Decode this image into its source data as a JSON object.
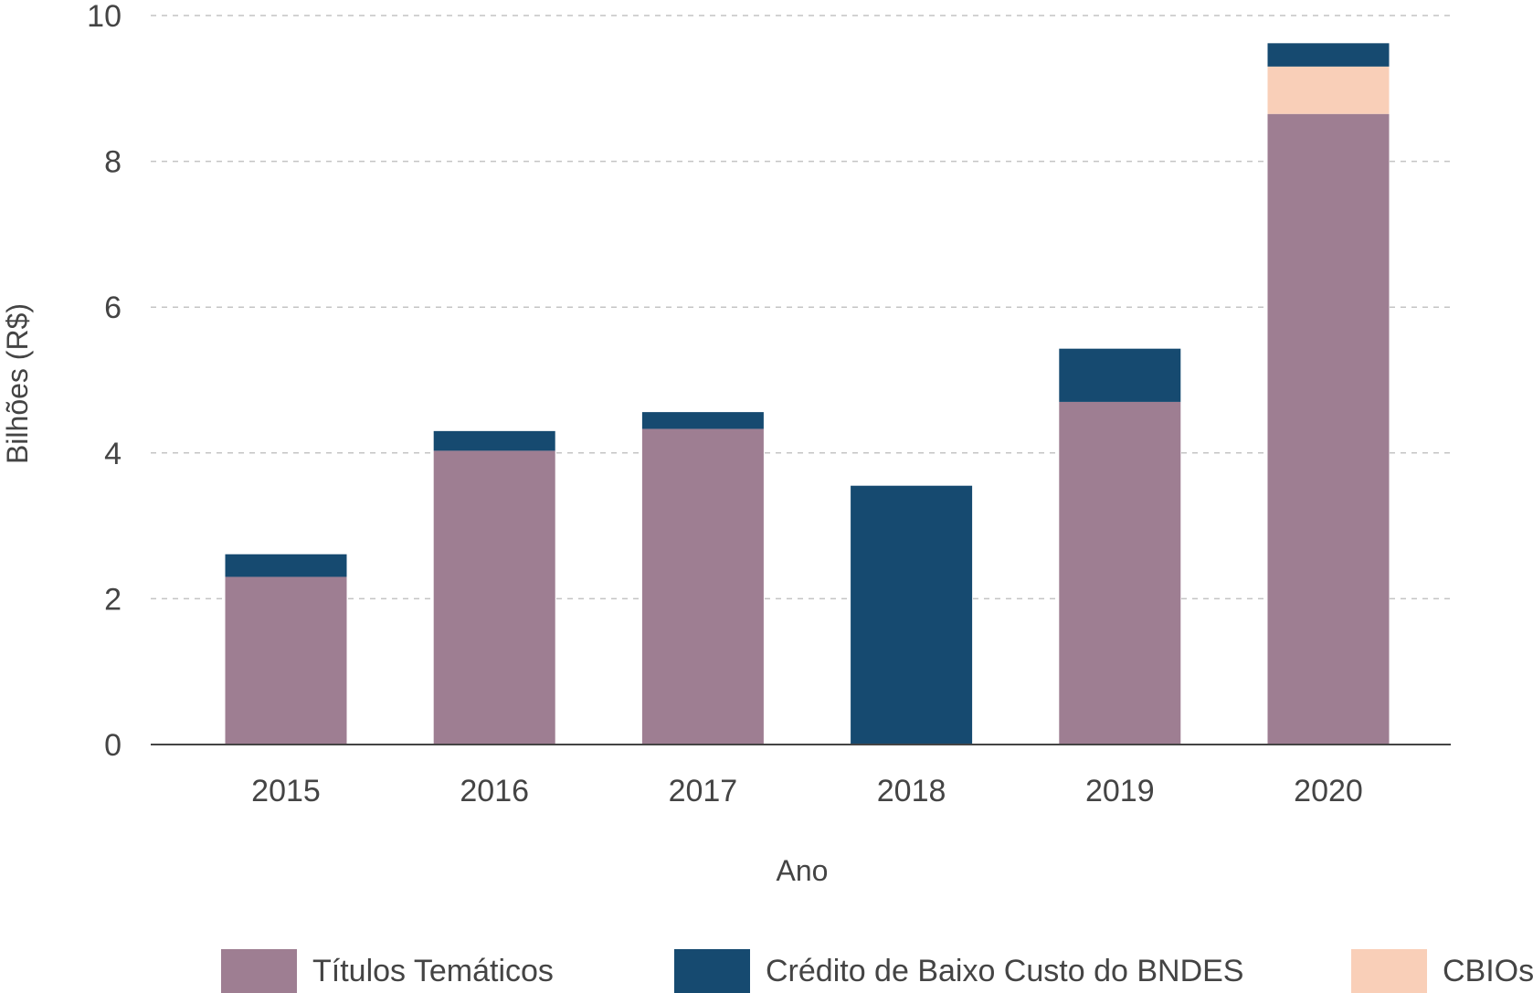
{
  "chart_data": {
    "type": "bar",
    "stacked": true,
    "title": "",
    "xlabel": "Ano",
    "ylabel": "Bilhões (R$)",
    "ylim": [
      0,
      10
    ],
    "yticks": [
      0,
      2,
      4,
      6,
      8,
      10
    ],
    "grid": "horizontal dashed",
    "legend_position": "bottom",
    "categories": [
      "2015",
      "2016",
      "2017",
      "2018",
      "2019",
      "2020"
    ],
    "series": [
      {
        "name": "Títulos Temáticos",
        "color": "#9e7e92",
        "values": [
          2.3,
          4.03,
          4.33,
          0,
          4.7,
          8.65
        ]
      },
      {
        "name": "CBIOs",
        "color": "#f9cfb8",
        "values": [
          0,
          0,
          0,
          0,
          0,
          0.65
        ]
      },
      {
        "name": "Crédito de Baixo Custo do BNDES",
        "color": "#164a70",
        "values": [
          0.31,
          0.27,
          0.23,
          3.55,
          0.73,
          0.32
        ]
      }
    ],
    "legend_order": [
      "Títulos Temáticos",
      "Crédito de Baixo Custo do BNDES",
      "CBIOs"
    ]
  }
}
